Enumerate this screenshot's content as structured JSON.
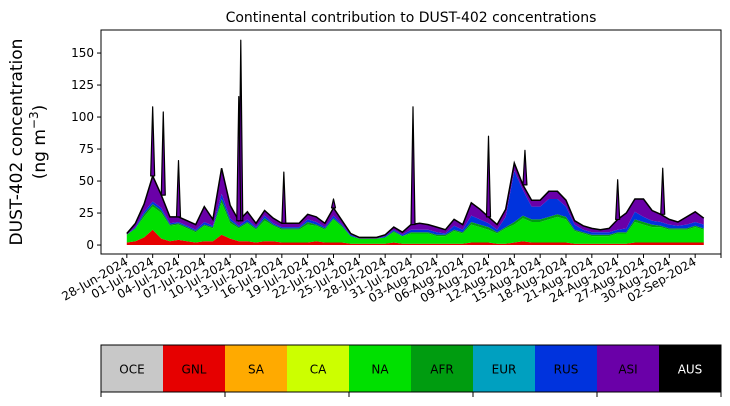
{
  "chart_data": {
    "type": "area",
    "stacked": true,
    "title": "Continental contribution to DUST-402 concentrations",
    "ylabel_line1": "DUST-402 concentration",
    "ylabel_line2_prefix": "(ng m",
    "ylabel_line2_sup": "−3",
    "ylabel_line2_suffix": ")",
    "ylim": [
      -7,
      168
    ],
    "yticks": [
      0,
      25,
      50,
      75,
      100,
      125,
      150
    ],
    "xlim": [
      "2024-06-25",
      "2024-09-05"
    ],
    "xticks": [
      "28-Jun-2024",
      "01-Jul-2024",
      "04-Jul-2024",
      "07-Jul-2024",
      "10-Jul-2024",
      "13-Jul-2024",
      "16-Jul-2024",
      "19-Jul-2024",
      "22-Jul-2024",
      "25-Jul-2024",
      "28-Jul-2024",
      "31-Jul-2024",
      "03-Aug-2024",
      "06-Aug-2024",
      "09-Aug-2024",
      "12-Aug-2024",
      "15-Aug-2024",
      "18-Aug-2024",
      "21-Aug-2024",
      "24-Aug-2024",
      "27-Aug-2024",
      "30-Aug-2024",
      "02-Sep-2024"
    ],
    "xtick_dates": [
      "2024-06-28",
      "2024-07-01",
      "2024-07-04",
      "2024-07-07",
      "2024-07-10",
      "2024-07-13",
      "2024-07-16",
      "2024-07-19",
      "2024-07-22",
      "2024-07-25",
      "2024-07-28",
      "2024-07-31",
      "2024-08-03",
      "2024-08-06",
      "2024-08-09",
      "2024-08-12",
      "2024-08-15",
      "2024-08-18",
      "2024-08-21",
      "2024-08-24",
      "2024-08-27",
      "2024-08-30",
      "2024-09-02",
      "2024-09-05"
    ],
    "grid": false,
    "legend": {
      "placement": "bottom",
      "entries": [
        {
          "label": "OCE",
          "color": "#c8c8c8"
        },
        {
          "label": "GNL",
          "color": "#e60000"
        },
        {
          "label": "SA",
          "color": "#ffaa00"
        },
        {
          "label": "CA",
          "color": "#ccff00"
        },
        {
          "label": "NA",
          "color": "#00e000"
        },
        {
          "label": "AFR",
          "color": "#009c10"
        },
        {
          "label": "EUR",
          "color": "#00a0c0"
        },
        {
          "label": "RUS",
          "color": "#0033dd"
        },
        {
          "label": "ASI",
          "color": "#6a00a8"
        },
        {
          "label": "AUS",
          "color": "#000000"
        }
      ]
    },
    "x": [
      "2024-06-28",
      "2024-06-29",
      "2024-06-30",
      "2024-07-01",
      "2024-07-02",
      "2024-07-03",
      "2024-07-04",
      "2024-07-05",
      "2024-07-06",
      "2024-07-07",
      "2024-07-08",
      "2024-07-09",
      "2024-07-10",
      "2024-07-11",
      "2024-07-12",
      "2024-07-13",
      "2024-07-14",
      "2024-07-15",
      "2024-07-16",
      "2024-07-17",
      "2024-07-18",
      "2024-07-19",
      "2024-07-20",
      "2024-07-21",
      "2024-07-22",
      "2024-07-23",
      "2024-07-24",
      "2024-07-25",
      "2024-07-26",
      "2024-07-27",
      "2024-07-28",
      "2024-07-29",
      "2024-07-30",
      "2024-07-31",
      "2024-08-01",
      "2024-08-02",
      "2024-08-03",
      "2024-08-04",
      "2024-08-05",
      "2024-08-06",
      "2024-08-07",
      "2024-08-08",
      "2024-08-09",
      "2024-08-10",
      "2024-08-11",
      "2024-08-12",
      "2024-08-13",
      "2024-08-14",
      "2024-08-15",
      "2024-08-16",
      "2024-08-17",
      "2024-08-18",
      "2024-08-19",
      "2024-08-20",
      "2024-08-21",
      "2024-08-22",
      "2024-08-23",
      "2024-08-24",
      "2024-08-25",
      "2024-08-26",
      "2024-08-27",
      "2024-08-28",
      "2024-08-29",
      "2024-08-30",
      "2024-08-31",
      "2024-09-01",
      "2024-09-02",
      "2024-09-03"
    ],
    "series": [
      {
        "name": "GNL",
        "color": "#e60000",
        "values": [
          2,
          3,
          6,
          12,
          5,
          3,
          4,
          3,
          2,
          3,
          3,
          8,
          5,
          3,
          3,
          2,
          3,
          3,
          2,
          2,
          2,
          2,
          3,
          2,
          2,
          2,
          1,
          1,
          1,
          1,
          1,
          2,
          1,
          1,
          1,
          1,
          1,
          1,
          1,
          1,
          2,
          2,
          2,
          1,
          1,
          2,
          3,
          2,
          2,
          2,
          2,
          2,
          1,
          1,
          1,
          1,
          1,
          1,
          1,
          2,
          2,
          2,
          2,
          2,
          2,
          2,
          2,
          2
        ]
      },
      {
        "name": "NA",
        "color": "#00e000",
        "values": [
          6,
          10,
          16,
          18,
          20,
          12,
          12,
          10,
          8,
          12,
          10,
          25,
          12,
          10,
          14,
          10,
          16,
          12,
          10,
          10,
          10,
          14,
          12,
          10,
          18,
          12,
          6,
          4,
          4,
          4,
          5,
          8,
          6,
          8,
          8,
          8,
          6,
          6,
          10,
          8,
          14,
          12,
          10,
          8,
          12,
          14,
          18,
          16,
          16,
          18,
          20,
          18,
          10,
          8,
          6,
          6,
          6,
          8,
          8,
          16,
          14,
          12,
          12,
          10,
          10,
          10,
          12,
          10
        ]
      },
      {
        "name": "AFR",
        "color": "#009c10",
        "values": [
          0,
          0,
          2,
          2,
          2,
          1,
          1,
          1,
          1,
          1,
          1,
          3,
          2,
          1,
          1,
          1,
          2,
          1,
          1,
          1,
          1,
          2,
          1,
          1,
          1,
          1,
          0,
          0,
          0,
          0,
          0,
          1,
          0,
          1,
          1,
          1,
          1,
          1,
          1,
          1,
          2,
          2,
          2,
          1,
          1,
          2,
          2,
          2,
          2,
          2,
          2,
          2,
          1,
          1,
          1,
          1,
          1,
          1,
          1,
          2,
          2,
          2,
          1,
          1,
          1,
          1,
          1,
          1
        ]
      },
      {
        "name": "RUS",
        "color": "#0033dd",
        "values": [
          0,
          1,
          2,
          2,
          2,
          1,
          1,
          1,
          1,
          2,
          1,
          4,
          2,
          1,
          2,
          1,
          2,
          1,
          1,
          1,
          1,
          2,
          2,
          1,
          2,
          1,
          1,
          0,
          0,
          0,
          1,
          1,
          1,
          2,
          2,
          2,
          2,
          1,
          3,
          2,
          5,
          4,
          3,
          2,
          8,
          40,
          20,
          10,
          10,
          14,
          12,
          8,
          4,
          2,
          2,
          2,
          2,
          2,
          3,
          6,
          4,
          3,
          3,
          3,
          2,
          3,
          3,
          3
        ]
      },
      {
        "name": "ASI",
        "color": "#6a00a8",
        "values": [
          1,
          3,
          6,
          20,
          10,
          5,
          4,
          4,
          4,
          12,
          5,
          20,
          10,
          4,
          6,
          3,
          4,
          4,
          3,
          3,
          3,
          4,
          4,
          3,
          6,
          3,
          1,
          1,
          1,
          1,
          1,
          2,
          2,
          4,
          5,
          4,
          4,
          3,
          5,
          4,
          10,
          8,
          5,
          4,
          6,
          6,
          4,
          5,
          5,
          6,
          6,
          5,
          3,
          3,
          3,
          2,
          3,
          8,
          12,
          10,
          14,
          8,
          6,
          4,
          3,
          6,
          8,
          5
        ]
      },
      {
        "name": "AUS",
        "color": "#000000",
        "values": [
          0,
          0,
          0,
          0,
          0,
          0,
          0,
          0,
          0,
          0,
          0,
          0,
          0,
          0,
          0,
          0,
          0,
          0,
          0,
          0,
          0,
          0,
          0,
          0,
          0,
          0,
          0,
          0,
          0,
          0,
          0,
          0,
          0,
          0,
          0,
          0,
          0,
          0,
          0,
          0,
          0,
          0,
          0,
          0,
          0,
          0,
          0,
          0,
          0,
          0,
          0,
          0,
          0,
          0,
          0,
          0,
          0,
          0,
          0,
          0,
          0,
          0,
          0,
          0,
          0,
          0,
          0,
          0
        ]
      }
    ],
    "total": [
      9,
      17,
      32,
      54,
      39,
      22,
      22,
      19,
      16,
      30,
      20,
      60,
      31,
      19,
      26,
      17,
      27,
      21,
      17,
      17,
      17,
      24,
      22,
      17,
      29,
      19,
      9,
      6,
      6,
      6,
      8,
      14,
      10,
      16,
      17,
      16,
      14,
      12,
      20,
      16,
      33,
      28,
      22,
      16,
      28,
      64,
      47,
      35,
      35,
      42,
      42,
      35,
      19,
      15,
      13,
      12,
      13,
      20,
      25,
      36,
      36,
      27,
      24,
      20,
      18,
      22,
      26,
      21
    ],
    "peaks": [
      {
        "x": "2024-07-01",
        "total": 108
      },
      {
        "x": "2024-07-02",
        "total": 104
      },
      {
        "x": "2024-07-04",
        "total": 66
      },
      {
        "x": "2024-07-11",
        "total": 160
      },
      {
        "x": "2024-07-11",
        "total": 116
      },
      {
        "x": "2024-07-16",
        "total": 57
      },
      {
        "x": "2024-07-22",
        "total": 36
      },
      {
        "x": "2024-07-31",
        "total": 108
      },
      {
        "x": "2024-08-09",
        "total": 85
      },
      {
        "x": "2024-08-13",
        "total": 74
      },
      {
        "x": "2024-08-24",
        "total": 51
      },
      {
        "x": "2024-08-29",
        "total": 60
      }
    ]
  }
}
